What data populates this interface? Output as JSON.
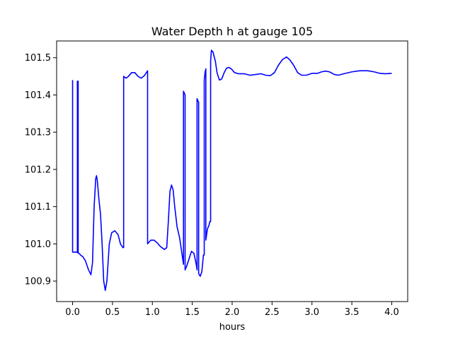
{
  "chart_data": {
    "type": "line",
    "title": "Water Depth h at gauge 105",
    "xlabel": "hours",
    "ylabel": "",
    "xlim": [
      -0.2,
      4.2
    ],
    "ylim": [
      100.845,
      101.545
    ],
    "xticks": [
      0.0,
      0.5,
      1.0,
      1.5,
      2.0,
      2.5,
      3.0,
      3.5,
      4.0
    ],
    "xtick_labels": [
      "0.0",
      "0.5",
      "1.0",
      "1.5",
      "2.0",
      "2.5",
      "3.0",
      "3.5",
      "4.0"
    ],
    "yticks": [
      100.9,
      101.0,
      101.1,
      101.2,
      101.3,
      101.4,
      101.5
    ],
    "ytick_labels": [
      "100.9",
      "101.0",
      "101.1",
      "101.2",
      "101.3",
      "101.4",
      "101.5"
    ],
    "grid": false,
    "series": [
      {
        "color": "#0000ff",
        "points": [
          [
            0.0,
            101.44
          ],
          [
            0.0,
            100.978
          ],
          [
            0.05,
            100.978
          ],
          [
            0.06,
            100.977
          ],
          [
            0.06,
            101.437
          ],
          [
            0.065,
            101.435
          ],
          [
            0.07,
            101.437
          ],
          [
            0.07,
            100.975
          ],
          [
            0.08,
            100.975
          ],
          [
            0.1,
            100.97
          ],
          [
            0.13,
            100.965
          ],
          [
            0.16,
            100.955
          ],
          [
            0.2,
            100.93
          ],
          [
            0.23,
            100.917
          ],
          [
            0.25,
            100.95
          ],
          [
            0.27,
            101.1
          ],
          [
            0.29,
            101.175
          ],
          [
            0.3,
            101.183
          ],
          [
            0.31,
            101.17
          ],
          [
            0.33,
            101.12
          ],
          [
            0.35,
            101.08
          ],
          [
            0.37,
            101.0
          ],
          [
            0.39,
            100.9
          ],
          [
            0.41,
            100.875
          ],
          [
            0.43,
            100.9
          ],
          [
            0.46,
            101.0
          ],
          [
            0.49,
            101.03
          ],
          [
            0.53,
            101.035
          ],
          [
            0.57,
            101.025
          ],
          [
            0.6,
            101.0
          ],
          [
            0.63,
            100.99
          ],
          [
            0.64,
            100.99
          ],
          [
            0.64,
            101.45
          ],
          [
            0.67,
            101.445
          ],
          [
            0.7,
            101.45
          ],
          [
            0.74,
            101.46
          ],
          [
            0.78,
            101.46
          ],
          [
            0.82,
            101.45
          ],
          [
            0.86,
            101.445
          ],
          [
            0.9,
            101.452
          ],
          [
            0.94,
            101.465
          ],
          [
            0.94,
            101.0
          ],
          [
            0.98,
            101.01
          ],
          [
            1.02,
            101.01
          ],
          [
            1.06,
            101.003
          ],
          [
            1.1,
            100.993
          ],
          [
            1.15,
            100.985
          ],
          [
            1.18,
            100.99
          ],
          [
            1.2,
            101.06
          ],
          [
            1.22,
            101.14
          ],
          [
            1.24,
            101.158
          ],
          [
            1.26,
            101.145
          ],
          [
            1.28,
            101.1
          ],
          [
            1.31,
            101.045
          ],
          [
            1.34,
            101.018
          ],
          [
            1.37,
            100.975
          ],
          [
            1.39,
            100.945
          ],
          [
            1.39,
            101.41
          ],
          [
            1.4,
            101.405
          ],
          [
            1.41,
            101.4
          ],
          [
            1.41,
            100.93
          ],
          [
            1.43,
            100.94
          ],
          [
            1.46,
            100.96
          ],
          [
            1.49,
            100.98
          ],
          [
            1.52,
            100.975
          ],
          [
            1.55,
            100.945
          ],
          [
            1.56,
            100.93
          ],
          [
            1.56,
            101.39
          ],
          [
            1.57,
            101.385
          ],
          [
            1.58,
            101.38
          ],
          [
            1.58,
            100.92
          ],
          [
            1.6,
            100.913
          ],
          [
            1.62,
            100.925
          ],
          [
            1.64,
            100.97
          ],
          [
            1.65,
            100.97
          ],
          [
            1.65,
            101.44
          ],
          [
            1.66,
            101.46
          ],
          [
            1.67,
            101.47
          ],
          [
            1.67,
            101.01
          ],
          [
            1.69,
            101.04
          ],
          [
            1.71,
            101.05
          ],
          [
            1.72,
            101.06
          ],
          [
            1.73,
            101.06
          ],
          [
            1.73,
            101.49
          ],
          [
            1.74,
            101.52
          ],
          [
            1.76,
            101.515
          ],
          [
            1.79,
            101.49
          ],
          [
            1.81,
            101.46
          ],
          [
            1.84,
            101.44
          ],
          [
            1.87,
            101.443
          ],
          [
            1.9,
            101.46
          ],
          [
            1.93,
            101.472
          ],
          [
            1.96,
            101.474
          ],
          [
            1.99,
            101.47
          ],
          [
            2.03,
            101.46
          ],
          [
            2.08,
            101.457
          ],
          [
            2.15,
            101.457
          ],
          [
            2.22,
            101.453
          ],
          [
            2.3,
            101.455
          ],
          [
            2.36,
            101.457
          ],
          [
            2.42,
            101.453
          ],
          [
            2.48,
            101.452
          ],
          [
            2.53,
            101.46
          ],
          [
            2.58,
            101.48
          ],
          [
            2.63,
            101.495
          ],
          [
            2.68,
            101.502
          ],
          [
            2.72,
            101.495
          ],
          [
            2.77,
            101.48
          ],
          [
            2.82,
            101.46
          ],
          [
            2.87,
            101.453
          ],
          [
            2.93,
            101.453
          ],
          [
            3.0,
            101.458
          ],
          [
            3.07,
            101.458
          ],
          [
            3.12,
            101.462
          ],
          [
            3.17,
            101.464
          ],
          [
            3.22,
            101.462
          ],
          [
            3.28,
            101.455
          ],
          [
            3.33,
            101.453
          ],
          [
            3.4,
            101.457
          ],
          [
            3.5,
            101.462
          ],
          [
            3.6,
            101.465
          ],
          [
            3.7,
            101.465
          ],
          [
            3.78,
            101.462
          ],
          [
            3.85,
            101.458
          ],
          [
            3.92,
            101.457
          ],
          [
            4.0,
            101.458
          ]
        ]
      }
    ]
  }
}
